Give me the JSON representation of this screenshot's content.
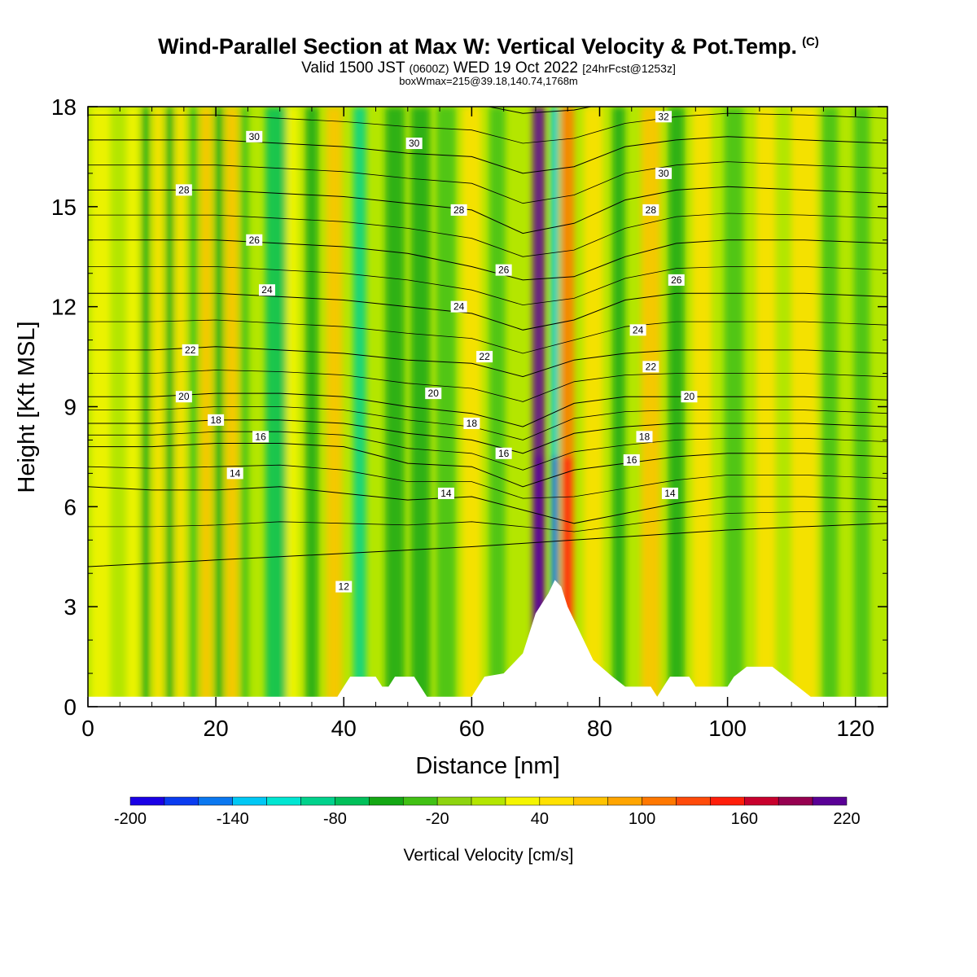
{
  "header": {
    "title": "Wind-Parallel Section at Max W: Vertical Velocity & Pot.Temp.",
    "title_tag": "(C)",
    "valid_prefix": "Valid 1500 JST",
    "valid_utc": "(0600Z)",
    "valid_date": "WED 19 Oct 2022",
    "forecast": "[24hrFcst@1253z]",
    "box_info": "boxWmax=215@39.18,140.74,1768m"
  },
  "chart_data": {
    "type": "heatmap",
    "title": "Wind-Parallel Section at Max W: Vertical Velocity & Pot.Temp.",
    "xlabel": "Distance [nm]",
    "ylabel": "Height [Kft MSL]",
    "xlim": [
      0,
      125
    ],
    "ylim": [
      0,
      18
    ],
    "x_ticks": [
      0,
      20,
      40,
      60,
      80,
      100,
      120
    ],
    "y_ticks": [
      0,
      3,
      6,
      9,
      12,
      15,
      18
    ],
    "colorbar": {
      "label": "Vertical Velocity [cm/s]",
      "tick_labels": [
        -200,
        -140,
        -80,
        -20,
        40,
        100,
        160,
        220
      ],
      "levels": [
        -200,
        -180,
        -160,
        -140,
        -120,
        -100,
        -80,
        -60,
        -40,
        -20,
        0,
        20,
        40,
        60,
        80,
        100,
        120,
        140,
        160,
        180,
        200,
        220
      ],
      "colors": [
        "#1a00e6",
        "#0a3cf0",
        "#0a78f0",
        "#00c8f5",
        "#00e6d2",
        "#00d28c",
        "#00c05a",
        "#14a814",
        "#41c114",
        "#8ed40f",
        "#b4e600",
        "#f5f500",
        "#ffe100",
        "#ffc300",
        "#ffa500",
        "#ff7800",
        "#ff4b0a",
        "#ff1e0a",
        "#c8002d",
        "#960050",
        "#5a0096"
      ]
    },
    "velocity_columns": [
      {
        "x": 2,
        "width": 3,
        "value": 20
      },
      {
        "x": 7,
        "width": 2,
        "value": 30
      },
      {
        "x": 9,
        "width": 1.2,
        "value": -50
      },
      {
        "x": 11,
        "width": 1.5,
        "value": 40
      },
      {
        "x": 12.8,
        "width": 1.2,
        "value": -50
      },
      {
        "x": 14.5,
        "width": 1.5,
        "value": 50
      },
      {
        "x": 16.5,
        "width": 1.3,
        "value": -40
      },
      {
        "x": 18.5,
        "width": 1.8,
        "value": 60
      },
      {
        "x": 20.5,
        "width": 1.3,
        "value": -50
      },
      {
        "x": 22.5,
        "width": 2,
        "value": 60
      },
      {
        "x": 24.5,
        "width": 1.3,
        "value": -40
      },
      {
        "x": 29.5,
        "width": 3.5,
        "value": -80
      },
      {
        "x": 32,
        "width": 2,
        "value": 20
      },
      {
        "x": 35,
        "width": 2,
        "value": -45
      },
      {
        "x": 38.5,
        "width": 2.5,
        "value": 70
      },
      {
        "x": 42.5,
        "width": 2,
        "value": -90
      },
      {
        "x": 48,
        "width": 3,
        "value": -50
      },
      {
        "x": 52,
        "width": 3,
        "value": -45
      },
      {
        "x": 56,
        "width": 3,
        "value": -40
      },
      {
        "x": 60,
        "width": 3,
        "value": 40
      },
      {
        "x": 64,
        "width": 2.5,
        "value": -35
      },
      {
        "x": 70.5,
        "width": 2,
        "value": 210
      },
      {
        "x": 73,
        "width": 1.2,
        "value": -140
      },
      {
        "x": 75,
        "width": 2,
        "value": 110
      },
      {
        "x": 79,
        "width": 3,
        "value": 50
      },
      {
        "x": 83,
        "width": 2,
        "value": -45
      },
      {
        "x": 88,
        "width": 3,
        "value": 60
      },
      {
        "x": 92,
        "width": 2.5,
        "value": -45
      },
      {
        "x": 96,
        "width": 3,
        "value": 45
      },
      {
        "x": 101,
        "width": 3,
        "value": -35
      },
      {
        "x": 106,
        "width": 3,
        "value": 40
      },
      {
        "x": 112,
        "width": 4,
        "value": 40
      },
      {
        "x": 116,
        "width": 2.5,
        "value": -30
      },
      {
        "x": 121,
        "width": 2.5,
        "value": -25
      }
    ],
    "terrain": [
      {
        "x": 0,
        "h": 0.3
      },
      {
        "x": 39,
        "h": 0.3
      },
      {
        "x": 40,
        "h": 0.6
      },
      {
        "x": 41,
        "h": 0.9
      },
      {
        "x": 45,
        "h": 0.9
      },
      {
        "x": 46,
        "h": 0.6
      },
      {
        "x": 47,
        "h": 0.6
      },
      {
        "x": 48,
        "h": 0.9
      },
      {
        "x": 51,
        "h": 0.9
      },
      {
        "x": 52,
        "h": 0.6
      },
      {
        "x": 53,
        "h": 0.3
      },
      {
        "x": 60,
        "h": 0.3
      },
      {
        "x": 61,
        "h": 0.6
      },
      {
        "x": 62,
        "h": 0.9
      },
      {
        "x": 65,
        "h": 1.0
      },
      {
        "x": 68,
        "h": 1.6
      },
      {
        "x": 69,
        "h": 2.2
      },
      {
        "x": 70,
        "h": 2.8
      },
      {
        "x": 72,
        "h": 3.4
      },
      {
        "x": 73,
        "h": 3.8
      },
      {
        "x": 74,
        "h": 3.6
      },
      {
        "x": 75,
        "h": 3.0
      },
      {
        "x": 77,
        "h": 2.2
      },
      {
        "x": 79,
        "h": 1.4
      },
      {
        "x": 82,
        "h": 0.9
      },
      {
        "x": 84,
        "h": 0.6
      },
      {
        "x": 88,
        "h": 0.6
      },
      {
        "x": 89,
        "h": 0.3
      },
      {
        "x": 90,
        "h": 0.6
      },
      {
        "x": 91,
        "h": 0.9
      },
      {
        "x": 94,
        "h": 0.9
      },
      {
        "x": 95,
        "h": 0.6
      },
      {
        "x": 100,
        "h": 0.6
      },
      {
        "x": 101,
        "h": 0.9
      },
      {
        "x": 103,
        "h": 1.2
      },
      {
        "x": 107,
        "h": 1.2
      },
      {
        "x": 109,
        "h": 0.9
      },
      {
        "x": 111,
        "h": 0.6
      },
      {
        "x": 113,
        "h": 0.3
      },
      {
        "x": 125,
        "h": 0.3
      }
    ],
    "isentropes": [
      {
        "value": 12,
        "y": [
          4.2,
          4.3,
          4.4,
          4.5,
          4.6,
          4.7,
          4.8,
          4.9,
          5.0,
          5.1,
          5.2,
          5.3,
          5.4,
          5.5
        ]
      },
      {
        "value": 14,
        "y": [
          6.6,
          6.5,
          6.5,
          6.6,
          6.4,
          6.2,
          6.3,
          5.9,
          5.5,
          5.8,
          6.1,
          6.3,
          6.3,
          6.2
        ]
      },
      {
        "value": 16,
        "y": [
          7.8,
          7.8,
          7.9,
          7.9,
          7.8,
          7.3,
          7.2,
          6.6,
          7.1,
          7.3,
          7.5,
          7.6,
          7.6,
          7.5
        ]
      },
      {
        "value": 18,
        "y": [
          8.5,
          8.5,
          8.6,
          8.6,
          8.5,
          8.2,
          8.0,
          7.6,
          8.2,
          8.4,
          8.5,
          8.5,
          8.5,
          8.4
        ]
      },
      {
        "value": 20,
        "y": [
          9.3,
          9.3,
          9.4,
          9.4,
          9.3,
          9.0,
          8.8,
          8.4,
          9.1,
          9.3,
          9.3,
          9.3,
          9.3,
          9.2
        ]
      },
      {
        "value": 22,
        "y": [
          10.7,
          10.7,
          10.8,
          10.7,
          10.6,
          10.4,
          10.3,
          9.9,
          10.4,
          10.6,
          10.7,
          10.7,
          10.7,
          10.6
        ]
      },
      {
        "value": 24,
        "y": [
          12.4,
          12.4,
          12.4,
          12.3,
          12.2,
          12.0,
          11.8,
          11.3,
          11.6,
          12.2,
          12.4,
          12.4,
          12.4,
          12.3
        ]
      },
      {
        "value": 26,
        "y": [
          14.0,
          14.0,
          14.0,
          13.9,
          13.8,
          13.6,
          13.2,
          12.8,
          12.9,
          13.5,
          13.9,
          14.0,
          14.0,
          13.9
        ]
      },
      {
        "value": 28,
        "y": [
          15.5,
          15.5,
          15.5,
          15.4,
          15.3,
          15.1,
          14.9,
          14.2,
          14.5,
          15.2,
          15.5,
          15.6,
          15.5,
          15.4
        ]
      },
      {
        "value": 30,
        "y": [
          17.0,
          17.0,
          17.0,
          16.9,
          16.8,
          16.6,
          16.5,
          16.0,
          16.2,
          16.8,
          17.0,
          17.1,
          17.0,
          16.9
        ]
      },
      {
        "value": 32,
        "y": [
          18.5,
          18.5,
          18.5,
          18.4,
          18.3,
          18.2,
          18.1,
          17.8,
          17.9,
          18.2,
          18.4,
          18.5,
          18.5,
          18.4
        ]
      }
    ],
    "isentrope_x": [
      0,
      10,
      20,
      30,
      40,
      50,
      60,
      68,
      76,
      84,
      92,
      100,
      112,
      125
    ],
    "contour_labels": [
      {
        "text": "30",
        "x": 26,
        "y": 17.1
      },
      {
        "text": "30",
        "x": 51,
        "y": 16.9
      },
      {
        "text": "32",
        "x": 90,
        "y": 17.7
      },
      {
        "text": "28",
        "x": 15,
        "y": 15.5
      },
      {
        "text": "30",
        "x": 90,
        "y": 16.0
      },
      {
        "text": "28",
        "x": 58,
        "y": 14.9
      },
      {
        "text": "28",
        "x": 88,
        "y": 14.9
      },
      {
        "text": "26",
        "x": 26,
        "y": 14.0
      },
      {
        "text": "26",
        "x": 65,
        "y": 13.1
      },
      {
        "text": "26",
        "x": 92,
        "y": 12.8
      },
      {
        "text": "24",
        "x": 28,
        "y": 12.5
      },
      {
        "text": "24",
        "x": 58,
        "y": 12.0
      },
      {
        "text": "24",
        "x": 86,
        "y": 11.3
      },
      {
        "text": "22",
        "x": 16,
        "y": 10.7
      },
      {
        "text": "22",
        "x": 62,
        "y": 10.5
      },
      {
        "text": "22",
        "x": 88,
        "y": 10.2
      },
      {
        "text": "20",
        "x": 15,
        "y": 9.3
      },
      {
        "text": "20",
        "x": 54,
        "y": 9.4
      },
      {
        "text": "20",
        "x": 94,
        "y": 9.3
      },
      {
        "text": "18",
        "x": 20,
        "y": 8.6
      },
      {
        "text": "18",
        "x": 60,
        "y": 8.5
      },
      {
        "text": "18",
        "x": 87,
        "y": 8.1
      },
      {
        "text": "16",
        "x": 27,
        "y": 8.1
      },
      {
        "text": "16",
        "x": 65,
        "y": 7.6
      },
      {
        "text": "16",
        "x": 85,
        "y": 7.4
      },
      {
        "text": "14",
        "x": 23,
        "y": 7.0
      },
      {
        "text": "14",
        "x": 56,
        "y": 6.4
      },
      {
        "text": "14",
        "x": 91,
        "y": 6.4
      },
      {
        "text": "12",
        "x": 40,
        "y": 3.6
      }
    ]
  }
}
